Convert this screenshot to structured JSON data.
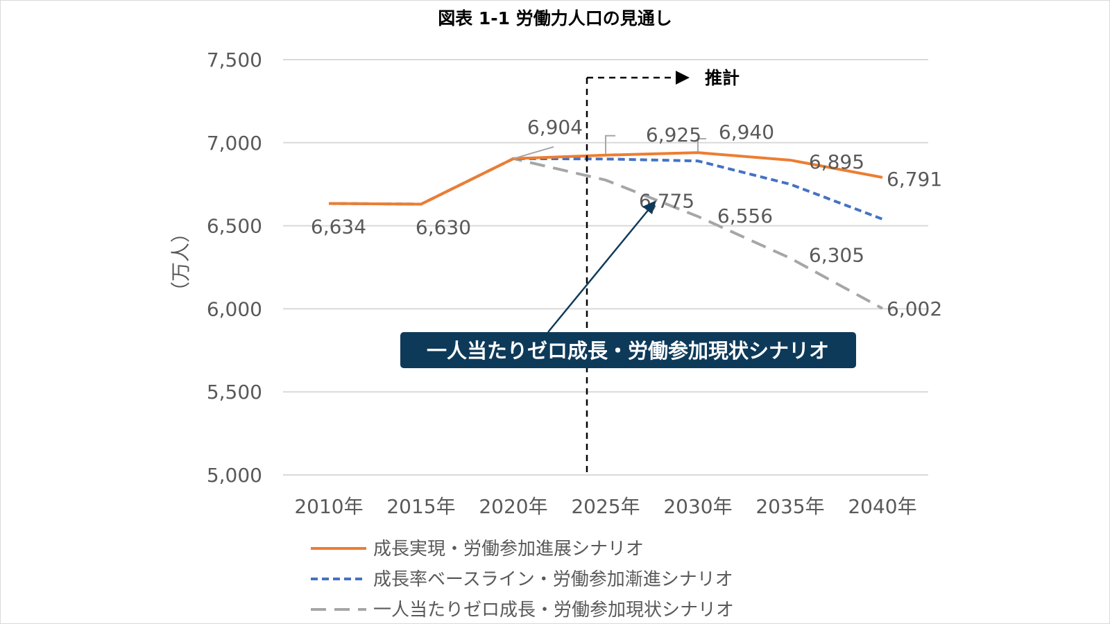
{
  "chart_data": {
    "type": "line",
    "title": "図表 1-1  労働力人口の見通し",
    "ylabel": "（万人）",
    "xlabel": "",
    "ylim": [
      5000,
      7500
    ],
    "yticks": [
      "5,000",
      "5,500",
      "6,000",
      "6,500",
      "7,000",
      "7,500"
    ],
    "categories": [
      "2010年",
      "2015年",
      "2020年",
      "2025年",
      "2030年",
      "2035年",
      "2040年"
    ],
    "grid": true,
    "legend_position": "bottom",
    "series": [
      {
        "name": "成長実現・労働参加進展シナリオ",
        "color": "#ed7d31",
        "style": "solid",
        "values": [
          6634,
          6630,
          6904,
          6925,
          6940,
          6895,
          6791
        ]
      },
      {
        "name": "成長率ベースライン・労働参加漸進シナリオ",
        "color": "#4472c4",
        "style": "dashed",
        "values": [
          6634,
          6630,
          6904,
          6902,
          6890,
          6750,
          6540
        ]
      },
      {
        "name": "一人当たりゼロ成長・労働参加現状シナリオ",
        "color": "#a6a6a6",
        "style": "longdash",
        "values": [
          6634,
          6630,
          6904,
          6775,
          6556,
          6305,
          6002
        ]
      }
    ],
    "data_labels": [
      {
        "text": "6,634",
        "series": 2,
        "index": 0
      },
      {
        "text": "6,630",
        "series": 2,
        "index": 1
      },
      {
        "text": "6,904",
        "series": 2,
        "index": 2
      },
      {
        "text": "6,925",
        "series": 0,
        "index": 3
      },
      {
        "text": "6,940",
        "series": 0,
        "index": 4
      },
      {
        "text": "6,895",
        "series": 0,
        "index": 5
      },
      {
        "text": "6,791",
        "series": 0,
        "index": 6
      },
      {
        "text": "6,775",
        "series": 2,
        "index": 3
      },
      {
        "text": "6,556",
        "series": 2,
        "index": 4
      },
      {
        "text": "6,305",
        "series": 2,
        "index": 5
      },
      {
        "text": "6,002",
        "series": 2,
        "index": 6
      }
    ],
    "projection_label": "推計",
    "callout": "一人当たりゼロ成長・労働参加現状シナリオ",
    "callout_color": "#0e3a5a"
  }
}
